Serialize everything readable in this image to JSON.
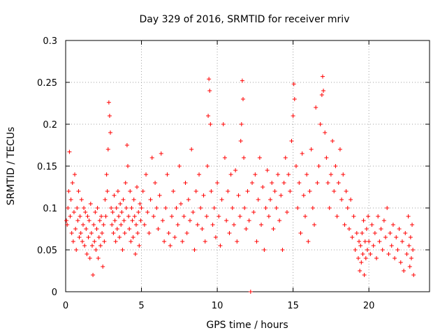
{
  "chart_data": {
    "type": "scatter",
    "title": "Day 329 of 2016, SRMTID for receiver mriv",
    "xlabel": "GPS time / hours",
    "ylabel": "SRMTID / TECUs",
    "xlim": [
      0,
      24
    ],
    "ylim": [
      0,
      0.3
    ],
    "xticks": [
      0,
      5,
      10,
      15,
      20
    ],
    "yticks": [
      0,
      0.05,
      0.1,
      0.15,
      0.2,
      0.25,
      0.3
    ],
    "xtick_labels": [
      "0",
      "5",
      "10",
      "15",
      "20"
    ],
    "ytick_labels": [
      "0",
      "0.05",
      "0.1",
      "0.15",
      "0.2",
      "0.25",
      "0.3"
    ],
    "grid": true,
    "marker": "+",
    "color": "#ff0000",
    "series": [
      {
        "name": "SRMTID",
        "points": [
          [
            0.05,
            0.085
          ],
          [
            0.1,
            0.08
          ],
          [
            0.15,
            0.1
          ],
          [
            0.2,
            0.12
          ],
          [
            0.25,
            0.167
          ],
          [
            0.3,
            0.09
          ],
          [
            0.35,
            0.11
          ],
          [
            0.4,
            0.07
          ],
          [
            0.45,
            0.13
          ],
          [
            0.5,
            0.06
          ],
          [
            0.55,
            0.095
          ],
          [
            0.6,
            0.14
          ],
          [
            0.65,
            0.075
          ],
          [
            0.7,
            0.05
          ],
          [
            0.75,
            0.1
          ],
          [
            0.8,
            0.085
          ],
          [
            0.85,
            0.12
          ],
          [
            0.9,
            0.065
          ],
          [
            0.95,
            0.09
          ],
          [
            1.0,
            0.07
          ],
          [
            1.05,
            0.11
          ],
          [
            1.1,
            0.06
          ],
          [
            1.15,
            0.08
          ],
          [
            1.2,
            0.1
          ],
          [
            1.25,
            0.055
          ],
          [
            1.3,
            0.095
          ],
          [
            1.35,
            0.075
          ],
          [
            1.4,
            0.045
          ],
          [
            1.45,
            0.09
          ],
          [
            1.5,
            0.065
          ],
          [
            1.55,
            0.085
          ],
          [
            1.6,
            0.04
          ],
          [
            1.65,
            0.105
          ],
          [
            1.7,
            0.07
          ],
          [
            1.75,
            0.055
          ],
          [
            1.8,
            0.02
          ],
          [
            1.85,
            0.08
          ],
          [
            1.9,
            0.06
          ],
          [
            1.95,
            0.095
          ],
          [
            2.0,
            0.05
          ],
          [
            2.05,
            0.075
          ],
          [
            2.1,
            0.1
          ],
          [
            2.15,
            0.04
          ],
          [
            2.2,
            0.065
          ],
          [
            2.25,
            0.085
          ],
          [
            2.3,
            0.055
          ],
          [
            2.35,
            0.09
          ],
          [
            2.4,
            0.07
          ],
          [
            2.45,
            0.03
          ],
          [
            2.5,
            0.08
          ],
          [
            2.55,
            0.06
          ],
          [
            2.6,
            0.11
          ],
          [
            2.65,
            0.09
          ],
          [
            2.7,
            0.14
          ],
          [
            2.75,
            0.12
          ],
          [
            2.8,
            0.17
          ],
          [
            2.85,
            0.226
          ],
          [
            2.9,
            0.21
          ],
          [
            2.95,
            0.19
          ],
          [
            3.0,
            0.1
          ],
          [
            3.05,
            0.08
          ],
          [
            3.1,
            0.095
          ],
          [
            3.15,
            0.07
          ],
          [
            3.2,
            0.115
          ],
          [
            3.25,
            0.085
          ],
          [
            3.3,
            0.06
          ],
          [
            3.35,
            0.1
          ],
          [
            3.4,
            0.075
          ],
          [
            3.45,
            0.12
          ],
          [
            3.5,
            0.09
          ],
          [
            3.55,
            0.065
          ],
          [
            3.6,
            0.105
          ],
          [
            3.65,
            0.08
          ],
          [
            3.7,
            0.095
          ],
          [
            3.75,
            0.05
          ],
          [
            3.8,
            0.11
          ],
          [
            3.85,
            0.085
          ],
          [
            3.9,
            0.07
          ],
          [
            3.95,
            0.13
          ],
          [
            4.0,
            0.1
          ],
          [
            4.05,
            0.175
          ],
          [
            4.1,
            0.15
          ],
          [
            4.15,
            0.09
          ],
          [
            4.2,
            0.075
          ],
          [
            4.25,
            0.12
          ],
          [
            4.3,
            0.06
          ],
          [
            4.35,
            0.1
          ],
          [
            4.4,
            0.085
          ],
          [
            4.45,
            0.065
          ],
          [
            4.5,
            0.11
          ],
          [
            4.55,
            0.09
          ],
          [
            4.6,
            0.045
          ],
          [
            4.65,
            0.08
          ],
          [
            4.7,
            0.125
          ],
          [
            4.75,
            0.07
          ],
          [
            4.8,
            0.095
          ],
          [
            4.85,
            0.055
          ],
          [
            4.9,
            0.105
          ],
          [
            4.95,
            0.085
          ],
          [
            5.0,
            0.1
          ],
          [
            5.1,
            0.12
          ],
          [
            5.2,
            0.08
          ],
          [
            5.3,
            0.14
          ],
          [
            5.4,
            0.095
          ],
          [
            5.5,
            0.07
          ],
          [
            5.6,
            0.11
          ],
          [
            5.7,
            0.16
          ],
          [
            5.8,
            0.09
          ],
          [
            5.9,
            0.13
          ],
          [
            6.0,
            0.1
          ],
          [
            6.1,
            0.075
          ],
          [
            6.2,
            0.115
          ],
          [
            6.3,
            0.165
          ],
          [
            6.4,
            0.085
          ],
          [
            6.5,
            0.06
          ],
          [
            6.6,
            0.1
          ],
          [
            6.7,
            0.14
          ],
          [
            6.8,
            0.07
          ],
          [
            6.9,
            0.055
          ],
          [
            7.0,
            0.09
          ],
          [
            7.1,
            0.12
          ],
          [
            7.2,
            0.065
          ],
          [
            7.3,
            0.1
          ],
          [
            7.4,
            0.08
          ],
          [
            7.5,
            0.15
          ],
          [
            7.6,
            0.105
          ],
          [
            7.7,
            0.06
          ],
          [
            7.8,
            0.09
          ],
          [
            7.9,
            0.13
          ],
          [
            8.0,
            0.07
          ],
          [
            8.1,
            0.11
          ],
          [
            8.2,
            0.085
          ],
          [
            8.3,
            0.17
          ],
          [
            8.4,
            0.095
          ],
          [
            8.5,
            0.05
          ],
          [
            8.6,
            0.12
          ],
          [
            8.7,
            0.08
          ],
          [
            8.8,
            0.14
          ],
          [
            8.9,
            0.1
          ],
          [
            9.0,
            0.075
          ],
          [
            9.1,
            0.115
          ],
          [
            9.2,
            0.06
          ],
          [
            9.3,
            0.09
          ],
          [
            9.35,
            0.15
          ],
          [
            9.4,
            0.21
          ],
          [
            9.45,
            0.254
          ],
          [
            9.5,
            0.24
          ],
          [
            9.55,
            0.2
          ],
          [
            9.6,
            0.12
          ],
          [
            9.7,
            0.08
          ],
          [
            9.8,
            0.1
          ],
          [
            9.9,
            0.065
          ],
          [
            10.0,
            0.13
          ],
          [
            10.1,
            0.09
          ],
          [
            10.2,
            0.055
          ],
          [
            10.3,
            0.11
          ],
          [
            10.4,
            0.2
          ],
          [
            10.5,
            0.16
          ],
          [
            10.6,
            0.085
          ],
          [
            10.7,
            0.12
          ],
          [
            10.8,
            0.07
          ],
          [
            10.9,
            0.14
          ],
          [
            11.0,
            0.1
          ],
          [
            11.1,
            0.08
          ],
          [
            11.2,
            0.145
          ],
          [
            11.3,
            0.06
          ],
          [
            11.4,
            0.115
          ],
          [
            11.5,
            0.09
          ],
          [
            11.55,
            0.18
          ],
          [
            11.6,
            0.2
          ],
          [
            11.65,
            0.252
          ],
          [
            11.7,
            0.23
          ],
          [
            11.75,
            0.16
          ],
          [
            11.8,
            0.1
          ],
          [
            11.9,
            0.075
          ],
          [
            12.0,
            0.12
          ],
          [
            12.1,
            0.085
          ],
          [
            12.2,
            0.0
          ],
          [
            12.3,
            0.13
          ],
          [
            12.4,
            0.095
          ],
          [
            12.5,
            0.14
          ],
          [
            12.6,
            0.06
          ],
          [
            12.7,
            0.11
          ],
          [
            12.8,
            0.16
          ],
          [
            12.9,
            0.08
          ],
          [
            13.0,
            0.125
          ],
          [
            13.1,
            0.05
          ],
          [
            13.2,
            0.1
          ],
          [
            13.3,
            0.145
          ],
          [
            13.4,
            0.09
          ],
          [
            13.5,
            0.11
          ],
          [
            13.6,
            0.13
          ],
          [
            13.7,
            0.075
          ],
          [
            13.8,
            0.12
          ],
          [
            13.9,
            0.1
          ],
          [
            14.0,
            0.14
          ],
          [
            14.1,
            0.085
          ],
          [
            14.2,
            0.115
          ],
          [
            14.3,
            0.05
          ],
          [
            14.4,
            0.13
          ],
          [
            14.5,
            0.16
          ],
          [
            14.6,
            0.095
          ],
          [
            14.7,
            0.14
          ],
          [
            14.8,
            0.12
          ],
          [
            14.9,
            0.18
          ],
          [
            15.0,
            0.21
          ],
          [
            15.05,
            0.248
          ],
          [
            15.1,
            0.23
          ],
          [
            15.2,
            0.15
          ],
          [
            15.3,
            0.1
          ],
          [
            15.4,
            0.13
          ],
          [
            15.5,
            0.07
          ],
          [
            15.6,
            0.165
          ],
          [
            15.7,
            0.115
          ],
          [
            15.8,
            0.09
          ],
          [
            15.9,
            0.14
          ],
          [
            16.0,
            0.06
          ],
          [
            16.1,
            0.12
          ],
          [
            16.2,
            0.17
          ],
          [
            16.3,
            0.1
          ],
          [
            16.4,
            0.08
          ],
          [
            16.5,
            0.22
          ],
          [
            16.6,
            0.13
          ],
          [
            16.7,
            0.15
          ],
          [
            16.8,
            0.2
          ],
          [
            16.9,
            0.235
          ],
          [
            16.95,
            0.257
          ],
          [
            17.0,
            0.24
          ],
          [
            17.1,
            0.19
          ],
          [
            17.2,
            0.16
          ],
          [
            17.3,
            0.13
          ],
          [
            17.4,
            0.1
          ],
          [
            17.5,
            0.14
          ],
          [
            17.6,
            0.18
          ],
          [
            17.7,
            0.12
          ],
          [
            17.8,
            0.15
          ],
          [
            17.9,
            0.09
          ],
          [
            18.0,
            0.13
          ],
          [
            18.1,
            0.17
          ],
          [
            18.2,
            0.11
          ],
          [
            18.3,
            0.14
          ],
          [
            18.4,
            0.08
          ],
          [
            18.5,
            0.12
          ],
          [
            18.6,
            0.1
          ],
          [
            18.7,
            0.075
          ],
          [
            18.8,
            0.11
          ],
          [
            18.9,
            0.065
          ],
          [
            19.0,
            0.09
          ],
          [
            19.1,
            0.05
          ],
          [
            19.2,
            0.07
          ],
          [
            19.3,
            0.04
          ],
          [
            19.35,
            0.06
          ],
          [
            19.4,
            0.025
          ],
          [
            19.45,
            0.055
          ],
          [
            19.5,
            0.035
          ],
          [
            19.55,
            0.07
          ],
          [
            19.6,
            0.045
          ],
          [
            19.65,
            0.085
          ],
          [
            19.7,
            0.02
          ],
          [
            19.75,
            0.06
          ],
          [
            19.8,
            0.04
          ],
          [
            19.85,
            0.075
          ],
          [
            19.9,
            0.05
          ],
          [
            19.95,
            0.09
          ],
          [
            20.0,
            0.06
          ],
          [
            20.1,
            0.045
          ],
          [
            20.2,
            0.08
          ],
          [
            20.3,
            0.055
          ],
          [
            20.4,
            0.07
          ],
          [
            20.5,
            0.04
          ],
          [
            20.6,
            0.09
          ],
          [
            20.7,
            0.06
          ],
          [
            20.8,
            0.075
          ],
          [
            20.9,
            0.05
          ],
          [
            21.0,
            0.085
          ],
          [
            21.1,
            0.065
          ],
          [
            21.2,
            0.1
          ],
          [
            21.3,
            0.045
          ],
          [
            21.4,
            0.07
          ],
          [
            21.5,
            0.055
          ],
          [
            21.6,
            0.08
          ],
          [
            21.7,
            0.04
          ],
          [
            21.8,
            0.065
          ],
          [
            21.9,
            0.05
          ],
          [
            22.0,
            0.075
          ],
          [
            22.1,
            0.035
          ],
          [
            22.2,
            0.06
          ],
          [
            22.3,
            0.025
          ],
          [
            22.4,
            0.07
          ],
          [
            22.5,
            0.045
          ],
          [
            22.6,
            0.09
          ],
          [
            22.65,
            0.055
          ],
          [
            22.7,
            0.03
          ],
          [
            22.75,
            0.065
          ],
          [
            22.8,
            0.04
          ],
          [
            22.85,
            0.08
          ],
          [
            22.9,
            0.05
          ],
          [
            22.95,
            0.02
          ]
        ]
      }
    ]
  }
}
